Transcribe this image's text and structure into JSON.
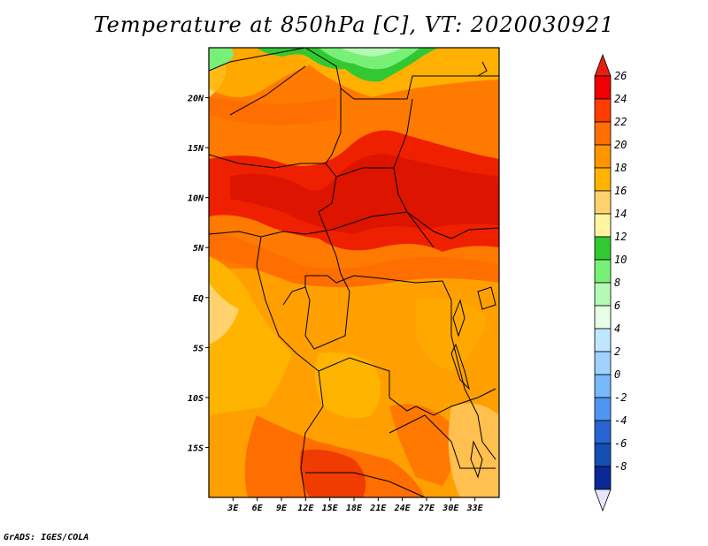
{
  "title": "Temperature at 850hPa [C], VT: 2020030921",
  "footer": "GrADS: IGES/COLA",
  "map": {
    "lon_range": [
      0,
      36
    ],
    "lat_range": [
      -20,
      25
    ],
    "lat_ticks": [
      {
        "value": 20,
        "label": "20N"
      },
      {
        "value": 15,
        "label": "15N"
      },
      {
        "value": 10,
        "label": "10N"
      },
      {
        "value": 5,
        "label": "5N"
      },
      {
        "value": 0,
        "label": "EQ"
      },
      {
        "value": -5,
        "label": "5S"
      },
      {
        "value": -10,
        "label": "10S"
      },
      {
        "value": -15,
        "label": "15S"
      }
    ],
    "lon_ticks": [
      {
        "value": 3,
        "label": "3E"
      },
      {
        "value": 6,
        "label": "6E"
      },
      {
        "value": 9,
        "label": "9E"
      },
      {
        "value": 12,
        "label": "12E"
      },
      {
        "value": 15,
        "label": "15E"
      },
      {
        "value": 18,
        "label": "18E"
      },
      {
        "value": 21,
        "label": "21E"
      },
      {
        "value": 24,
        "label": "24E"
      },
      {
        "value": 27,
        "label": "27E"
      },
      {
        "value": 30,
        "label": "30E"
      },
      {
        "value": 33,
        "label": "33E"
      }
    ]
  },
  "colorbar": {
    "levels": [
      "26",
      "24",
      "22",
      "20",
      "18",
      "16",
      "14",
      "12",
      "10",
      "8",
      "6",
      "4",
      "2",
      "0",
      "-2",
      "-4",
      "-6",
      "-8"
    ],
    "colors": [
      "#f00000",
      "#ff3c00",
      "#ff6e00",
      "#ff9600",
      "#ffb400",
      "#ffd26e",
      "#fff5a0",
      "#32c832",
      "#78f078",
      "#b4fab4",
      "#e6ffe6",
      "#bfe6ff",
      "#a0d2ff",
      "#78b9fa",
      "#5096f0",
      "#2864d2",
      "#1450b4",
      "#0a2896",
      "#000064"
    ],
    "top_triangle_color": "#e81e14",
    "bottom_triangle_color": "#e6e6ff"
  }
}
